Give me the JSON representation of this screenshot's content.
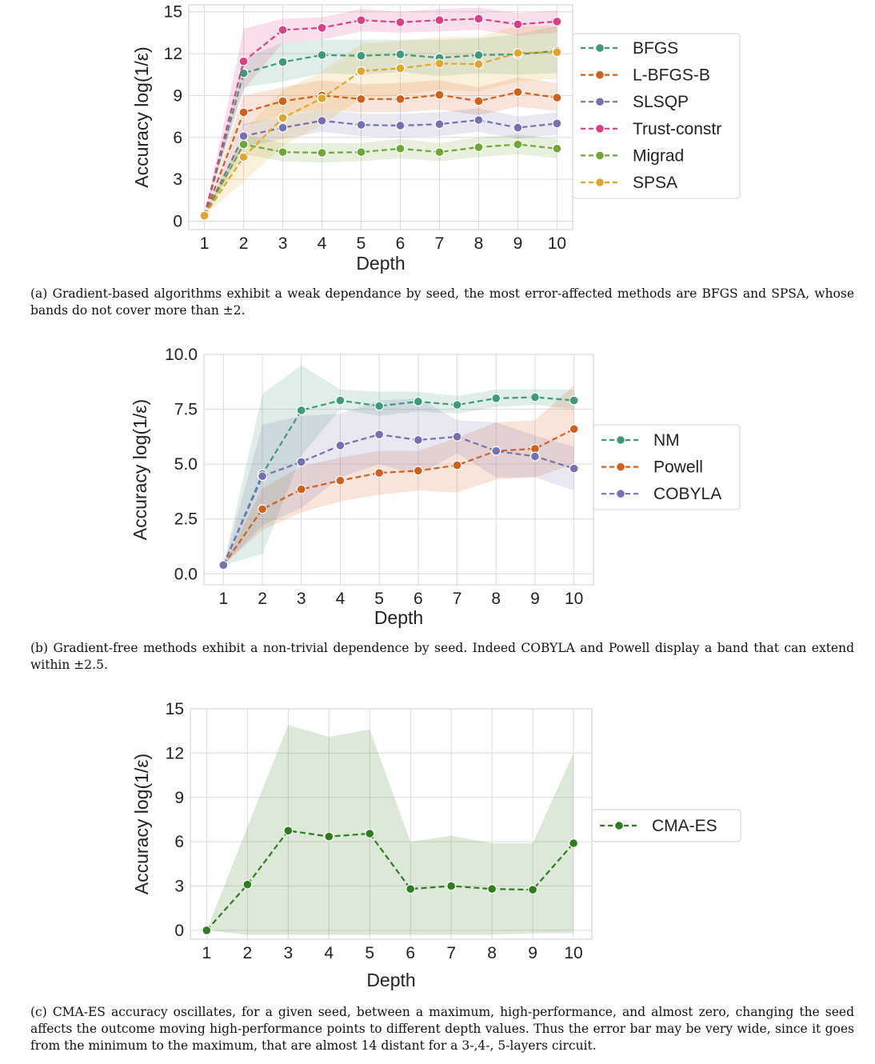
{
  "chart_data": [
    {
      "id": "a",
      "type": "line",
      "xlabel": "Depth",
      "ylabel": "Accuracy log(1/ε)",
      "xlim": [
        0.6,
        10.4
      ],
      "ylim": [
        -0.6,
        15.5
      ],
      "xticks": [
        1,
        2,
        3,
        4,
        5,
        6,
        7,
        8,
        9,
        10
      ],
      "yticks": [
        0,
        3,
        6,
        9,
        12,
        15
      ],
      "yticklabels": [
        "0",
        "3",
        "6",
        "9",
        "12",
        "15"
      ],
      "x": [
        1,
        2,
        3,
        4,
        5,
        6,
        7,
        8,
        9,
        10
      ],
      "grid": true,
      "legend_position": "right",
      "series": [
        {
          "name": "BFGS",
          "color": "#3f9a7c",
          "values": [
            0.4,
            10.6,
            11.4,
            11.9,
            11.85,
            11.95,
            11.7,
            11.9,
            11.95,
            12.2
          ],
          "band_low": [
            0.4,
            9.6,
            10.0,
            10.6,
            10.5,
            10.7,
            10.4,
            10.6,
            10.5,
            10.6
          ],
          "band_high": [
            0.4,
            11.6,
            12.8,
            13.0,
            13.0,
            13.0,
            13.0,
            13.1,
            13.4,
            14.0
          ]
        },
        {
          "name": "L-BFGS-B",
          "color": "#d35f1d",
          "values": [
            0.4,
            7.8,
            8.6,
            9.0,
            8.75,
            8.75,
            9.05,
            8.6,
            9.25,
            8.85
          ],
          "band_low": [
            0.4,
            6.8,
            7.6,
            8.0,
            7.8,
            7.8,
            8.0,
            7.6,
            8.2,
            7.9
          ],
          "band_high": [
            0.4,
            9.0,
            9.6,
            10.1,
            9.8,
            9.9,
            10.1,
            9.6,
            10.3,
            9.9
          ]
        },
        {
          "name": "SLSQP",
          "color": "#7570b0",
          "values": [
            0.4,
            6.1,
            6.7,
            7.2,
            6.9,
            6.85,
            6.95,
            7.25,
            6.7,
            7.0
          ],
          "band_low": [
            0.4,
            5.3,
            5.9,
            6.4,
            6.1,
            6.0,
            6.1,
            6.4,
            5.9,
            6.2
          ],
          "band_high": [
            0.4,
            7.0,
            7.5,
            8.0,
            7.7,
            7.7,
            7.8,
            8.1,
            7.5,
            7.8
          ]
        },
        {
          "name": "Trust-constr",
          "color": "#db3f86",
          "values": [
            0.4,
            11.45,
            13.7,
            13.85,
            14.4,
            14.25,
            14.4,
            14.5,
            14.1,
            14.3
          ],
          "band_low": [
            0.4,
            9.4,
            12.8,
            13.0,
            13.6,
            13.5,
            13.6,
            13.7,
            13.3,
            13.5
          ],
          "band_high": [
            0.4,
            13.8,
            14.5,
            14.6,
            15.2,
            15.0,
            15.2,
            15.3,
            14.9,
            15.1
          ]
        },
        {
          "name": "Migrad",
          "color": "#6fa737",
          "values": [
            0.4,
            5.5,
            4.95,
            4.9,
            4.95,
            5.2,
            4.95,
            5.3,
            5.5,
            5.2
          ],
          "band_low": [
            0.4,
            4.8,
            4.3,
            4.2,
            4.3,
            4.5,
            4.3,
            4.6,
            4.8,
            4.5
          ],
          "band_high": [
            0.4,
            6.2,
            5.6,
            5.6,
            5.6,
            5.9,
            5.6,
            6.0,
            6.2,
            5.9
          ]
        },
        {
          "name": "SPSA",
          "color": "#e0a62c",
          "values": [
            0.4,
            4.6,
            7.4,
            8.8,
            10.75,
            10.95,
            11.3,
            11.25,
            12.05,
            12.1
          ],
          "band_low": [
            0.4,
            2.8,
            5.4,
            6.9,
            8.8,
            9.0,
            9.4,
            9.3,
            10.0,
            10.2
          ],
          "band_high": [
            0.4,
            6.5,
            9.4,
            10.7,
            12.7,
            12.9,
            13.2,
            13.2,
            14.0,
            14.0
          ]
        }
      ]
    },
    {
      "id": "b",
      "type": "line",
      "xlabel": "Depth",
      "ylabel": "Accuracy log(1/ε)",
      "xlim": [
        0.5,
        10.5
      ],
      "ylim": [
        -0.5,
        10.0
      ],
      "xticks": [
        1,
        2,
        3,
        4,
        5,
        6,
        7,
        8,
        9,
        10
      ],
      "yticks": [
        0,
        2.5,
        5,
        7.5,
        10
      ],
      "yticklabels": [
        "0.0",
        "2.5",
        "5.0",
        "7.5",
        "10.0"
      ],
      "x": [
        1,
        2,
        3,
        4,
        5,
        6,
        7,
        8,
        9,
        10
      ],
      "grid": true,
      "legend_position": "right",
      "series": [
        {
          "name": "NM",
          "color": "#3f9a7c",
          "values": [
            0.4,
            4.55,
            7.45,
            7.9,
            7.65,
            7.85,
            7.7,
            8.0,
            8.05,
            7.9
          ],
          "band_low": [
            0.4,
            0.9,
            5.4,
            7.5,
            7.2,
            7.4,
            7.3,
            7.6,
            7.7,
            7.5
          ],
          "band_high": [
            0.4,
            8.2,
            9.5,
            8.4,
            8.3,
            8.3,
            8.1,
            8.4,
            8.4,
            8.4
          ]
        },
        {
          "name": "Powell",
          "color": "#d35f1d",
          "values": [
            0.4,
            2.95,
            3.85,
            4.25,
            4.6,
            4.7,
            4.95,
            5.6,
            5.7,
            6.6
          ],
          "band_low": [
            0.4,
            2.0,
            2.8,
            3.3,
            3.6,
            3.8,
            3.7,
            4.3,
            4.4,
            5.0
          ],
          "band_high": [
            0.4,
            3.9,
            4.9,
            5.3,
            5.6,
            5.6,
            6.2,
            6.9,
            7.0,
            8.6
          ]
        },
        {
          "name": "COBYLA",
          "color": "#7570b0",
          "values": [
            0.4,
            4.45,
            5.1,
            5.85,
            6.35,
            6.1,
            6.25,
            5.6,
            5.35,
            4.8
          ],
          "band_low": [
            0.4,
            2.2,
            3.0,
            4.4,
            5.0,
            4.5,
            5.5,
            4.4,
            4.4,
            3.8
          ],
          "band_high": [
            0.4,
            6.8,
            7.2,
            7.3,
            7.9,
            8.0,
            7.0,
            6.9,
            6.3,
            5.8
          ]
        }
      ]
    },
    {
      "id": "c",
      "type": "line",
      "xlabel": "Depth",
      "ylabel": "Accuracy log(1/ε)",
      "xlim": [
        0.6,
        10.45
      ],
      "ylim": [
        -0.6,
        15.0
      ],
      "xticks": [
        1,
        2,
        3,
        4,
        5,
        6,
        7,
        8,
        9,
        10
      ],
      "yticks": [
        0,
        3,
        6,
        9,
        12,
        15
      ],
      "yticklabels": [
        "0",
        "3",
        "6",
        "9",
        "12",
        "15"
      ],
      "x": [
        1,
        2,
        3,
        4,
        5,
        6,
        7,
        8,
        9,
        10
      ],
      "grid": true,
      "legend_position": "right",
      "series": [
        {
          "name": "CMA-ES",
          "color": "#2e7d1e",
          "values": [
            0.0,
            3.1,
            6.75,
            6.35,
            6.55,
            2.8,
            3.0,
            2.8,
            2.75,
            5.9
          ],
          "band_low": [
            0.0,
            -0.3,
            -0.3,
            -0.3,
            -0.3,
            -0.3,
            -0.3,
            -0.3,
            -0.2,
            -0.2
          ],
          "band_high": [
            0.0,
            7.0,
            13.9,
            13.1,
            13.6,
            6.0,
            6.4,
            5.9,
            5.9,
            12.0
          ]
        }
      ]
    }
  ],
  "captions": {
    "a": "(a) Gradient-based algorithms exhibit a weak dependance by seed, the most error-affected methods are BFGS and SPSA, whose bands do not cover more than ±2.",
    "b": "(b) Gradient-free methods exhibit a non-trivial dependence by seed. Indeed COBYLA and Powell display a band that can extend within ±2.5.",
    "c": "(c) CMA-ES accuracy oscillates, for a given seed, between a maximum, high-performance, and almost zero, changing the seed affects the outcome moving high-performance points to different depth values. Thus the error bar may be very wide, since it goes from the minimum to the maximum, that are almost 14 distant for a 3-,4-, 5-layers circuit."
  }
}
